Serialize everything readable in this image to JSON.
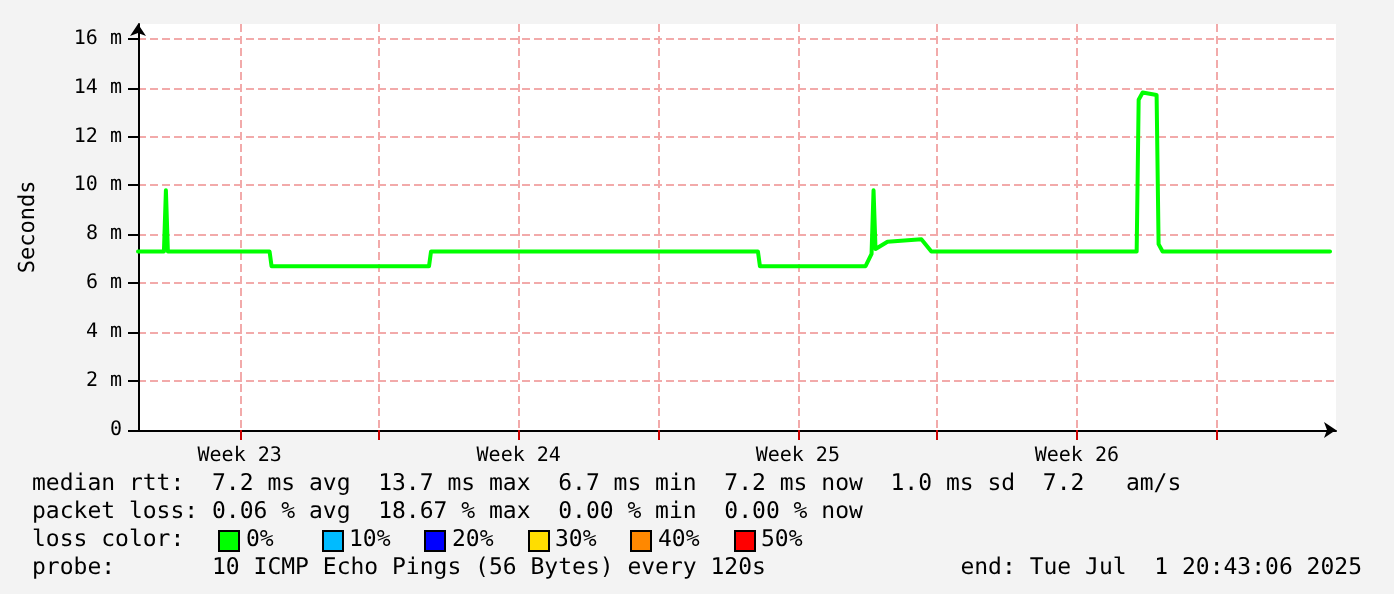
{
  "chart_data": {
    "type": "line",
    "ylabel": "Seconds",
    "x": [
      "2025-06-01T22:48",
      "2025-06-02T14:24",
      "2025-06-02T15:36",
      "2025-06-02T16:48",
      "2025-06-05T06:00",
      "2025-06-05T07:12",
      "2025-06-09T06:00",
      "2025-06-09T07:12",
      "2025-06-17T12:00",
      "2025-06-17T13:12",
      "2025-06-20T04:48",
      "2025-06-20T08:24",
      "2025-06-20T09:36",
      "2025-06-20T10:48",
      "2025-06-20T18:00",
      "2025-06-21T14:24",
      "2025-06-21T20:24",
      "2025-06-21T22:48",
      "2025-06-27T00:00",
      "2025-06-27T01:12",
      "2025-06-27T03:36",
      "2025-06-27T12:00",
      "2025-06-27T13:12",
      "2025-06-27T15:36",
      "2025-07-01T20:24"
    ],
    "series": [
      {
        "color": "#00ff00",
        "values": [
          7.3,
          7.3,
          9.8,
          7.3,
          7.3,
          6.7,
          6.7,
          7.3,
          7.3,
          6.7,
          6.7,
          7.2,
          9.8,
          7.4,
          7.7,
          7.8,
          7.3,
          7.3,
          7.3,
          13.5,
          13.8,
          13.7,
          7.6,
          7.3,
          7.3
        ]
      }
    ],
    "xlim": [
      "2025-06-01T22:48",
      "2025-07-02T00:00"
    ],
    "xticks": [
      {
        "value": "2025-06-04T12:00",
        "label": "Week 23"
      },
      {
        "value": "2025-06-08T00:00",
        "label": null
      },
      {
        "value": "2025-06-11T12:00",
        "label": "Week 24"
      },
      {
        "value": "2025-06-15T00:00",
        "label": null
      },
      {
        "value": "2025-06-18T12:00",
        "label": "Week 25"
      },
      {
        "value": "2025-06-22T00:00",
        "label": null
      },
      {
        "value": "2025-06-25T12:00",
        "label": "Week 26"
      },
      {
        "value": "2025-06-29T00:00",
        "label": null
      }
    ],
    "ylim": [
      0,
      16.6
    ],
    "yticks": [
      0,
      {
        "value": 2,
        "label": "2 m"
      },
      {
        "value": 4,
        "label": "4 m"
      },
      {
        "value": 6,
        "label": "6 m"
      },
      {
        "value": 8,
        "label": "8 m"
      },
      {
        "value": 10,
        "label": "10 m"
      },
      {
        "value": 12,
        "label": "12 m"
      },
      {
        "value": 14,
        "label": "14 m"
      },
      {
        "value": 16,
        "label": "16 m"
      }
    ],
    "grid": true,
    "marker": "none",
    "line_style": "solid",
    "annotations": [
      "median rtt:  7.2 ms avg  13.7 ms max  6.7 ms min  7.2 ms now  1.0 ms sd  7.2   am/s",
      "packet loss: 0.06 % avg  18.67 % max  0.00 % min  0.00 % now",
      "loss color:",
      "0%",
      "10%",
      "20%",
      "30%",
      "40%",
      "50%",
      "probe:       10 ICMP Echo Pings (56 Bytes) every 120s",
      "end: Tue Jul  1 20:43:06 2025"
    ]
  }
}
